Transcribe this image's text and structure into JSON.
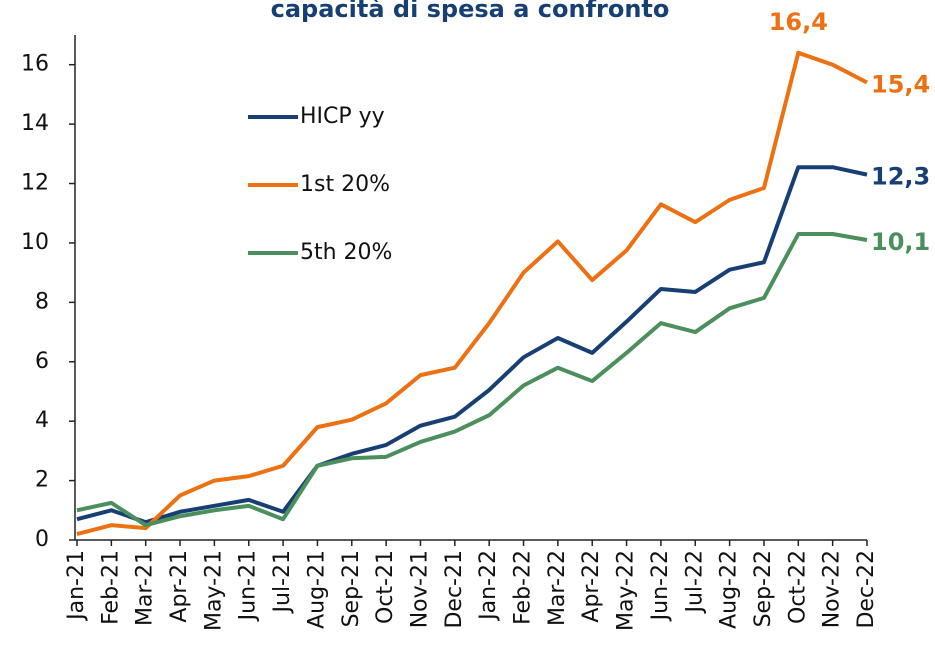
{
  "chart_data": {
    "type": "line",
    "title": "capacità di spesa a confronto",
    "categories": [
      "Jan-21",
      "Feb-21",
      "Mar-21",
      "Apr-21",
      "May-21",
      "Jun-21",
      "Jul-21",
      "Aug-21",
      "Sep-21",
      "Oct-21",
      "Nov-21",
      "Dec-21",
      "Jan-22",
      "Feb-22",
      "Mar-22",
      "Apr-22",
      "May-22",
      "Jun-22",
      "Jul-22",
      "Aug-22",
      "Sep-22",
      "Oct-22",
      "Nov-22",
      "Dec-22"
    ],
    "series": [
      {
        "name": "HICP yy",
        "color": "#173f74",
        "values": [
          0.7,
          1.0,
          0.6,
          0.95,
          1.15,
          1.35,
          0.95,
          2.5,
          2.9,
          3.2,
          3.85,
          4.15,
          5.05,
          6.15,
          6.8,
          6.3,
          7.35,
          8.45,
          8.35,
          9.1,
          9.35,
          12.55,
          12.55,
          12.3
        ],
        "value_labels": [
          null,
          null,
          null,
          null,
          null,
          null,
          null,
          null,
          null,
          null,
          null,
          null,
          null,
          null,
          null,
          null,
          null,
          null,
          null,
          null,
          null,
          null,
          null,
          "12,3"
        ]
      },
      {
        "name": "1st 20%",
        "color": "#ed7012",
        "values": [
          0.2,
          0.5,
          0.4,
          1.5,
          2.0,
          2.15,
          2.5,
          3.8,
          4.05,
          4.6,
          5.55,
          5.8,
          7.3,
          9.0,
          10.05,
          8.75,
          9.75,
          11.3,
          10.7,
          11.45,
          11.85,
          16.4,
          16.0,
          15.4
        ],
        "value_labels": [
          null,
          null,
          null,
          null,
          null,
          null,
          null,
          null,
          null,
          null,
          null,
          null,
          null,
          null,
          null,
          null,
          null,
          null,
          null,
          null,
          null,
          "16,4",
          null,
          "15,4"
        ]
      },
      {
        "name": "5th 20%",
        "color": "#4a8f5c",
        "values": [
          1.0,
          1.25,
          0.5,
          0.8,
          1.0,
          1.15,
          0.7,
          2.5,
          2.75,
          2.8,
          3.3,
          3.65,
          4.2,
          5.2,
          5.8,
          5.35,
          6.3,
          7.3,
          7.0,
          7.8,
          8.15,
          10.3,
          10.3,
          10.1
        ],
        "value_labels": [
          null,
          null,
          null,
          null,
          null,
          null,
          null,
          null,
          null,
          null,
          null,
          null,
          null,
          null,
          null,
          null,
          null,
          null,
          null,
          null,
          null,
          null,
          null,
          "10,1"
        ]
      }
    ],
    "ylim": [
      0,
      17
    ],
    "yticks": [
      0,
      2,
      4,
      6,
      8,
      10,
      12,
      14,
      16
    ]
  }
}
